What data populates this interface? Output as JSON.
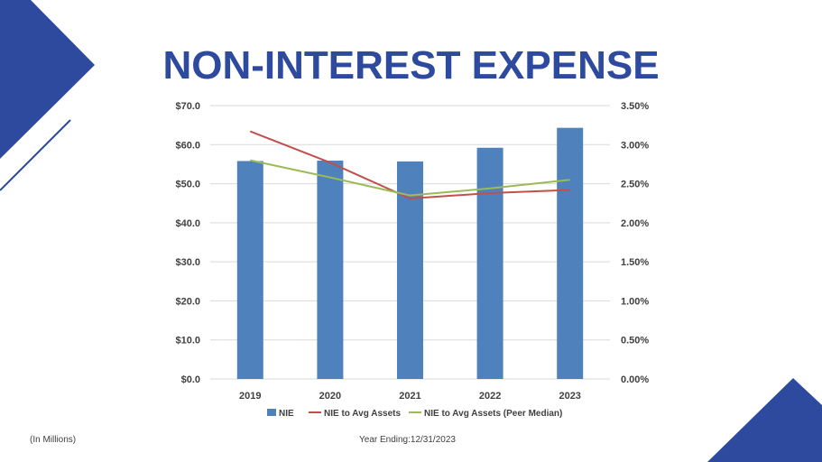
{
  "title": "NON-INTEREST EXPENSE",
  "footer": {
    "units_note": "(In Millions)",
    "period_note": "Year Ending:12/31/2023"
  },
  "colors": {
    "title": "#2E4A9E",
    "decoration": "#2E4A9E",
    "bar": "#4F81BD",
    "line_avg_assets": "#C0504D",
    "line_peer_median": "#9BBB59",
    "gridline": "#D9D9D9"
  },
  "chart_data": {
    "type": "bar",
    "categories": [
      "2019",
      "2020",
      "2021",
      "2022",
      "2023"
    ],
    "y_left": {
      "ylim": [
        0,
        70
      ],
      "ticks": [
        0,
        10,
        20,
        30,
        40,
        50,
        60,
        70
      ],
      "tick_labels": [
        "$0.0",
        "$10.0",
        "$20.0",
        "$30.0",
        "$40.0",
        "$50.0",
        "$60.0",
        "$70.0"
      ]
    },
    "y_right": {
      "ylim": [
        0,
        3.5
      ],
      "ticks": [
        0,
        0.5,
        1.0,
        1.5,
        2.0,
        2.5,
        3.0,
        3.5
      ],
      "tick_labels": [
        "0.00%",
        "0.50%",
        "1.00%",
        "1.50%",
        "2.00%",
        "2.50%",
        "3.00%",
        "3.50%"
      ]
    },
    "grid": true,
    "legend_position": "bottom",
    "series": [
      {
        "name": "NIE",
        "type": "bar",
        "axis": "left",
        "color": "#4F81BD",
        "values": [
          55.8,
          55.9,
          55.7,
          59.2,
          64.3
        ]
      },
      {
        "name": "NIE to Avg Assets",
        "type": "line",
        "axis": "right",
        "color": "#C0504D",
        "values": [
          3.17,
          2.77,
          2.31,
          2.38,
          2.42
        ]
      },
      {
        "name": "NIE to Avg Assets (Peer Median)",
        "type": "line",
        "axis": "right",
        "color": "#9BBB59",
        "values": [
          2.8,
          2.58,
          2.35,
          2.44,
          2.55
        ]
      }
    ]
  }
}
